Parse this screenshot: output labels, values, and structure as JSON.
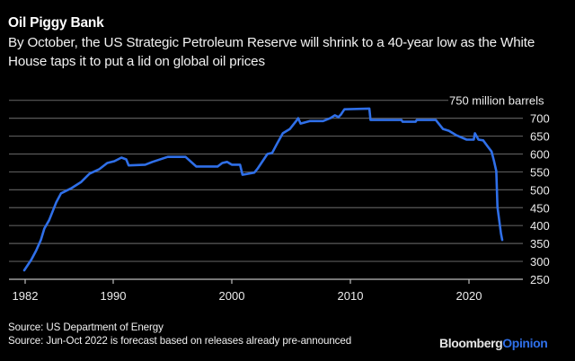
{
  "header": {
    "title": "Oil Piggy Bank",
    "subtitle": "By October, the US Strategic Petroleum Reserve will shrink to a 40-year low as the White House taps it to put a lid on global oil prices"
  },
  "footer": {
    "source_1": "Source: US Department of Energy",
    "source_2": "Source: Jun-Oct 2022 is forecast based on releases already pre-announced",
    "brand_main": "Bloomberg",
    "brand_accent": "Opinion"
  },
  "colors": {
    "background": "#000000",
    "line": "#2f6fe8",
    "gridline": "#5a5a5a",
    "axis": "#bdbdbd",
    "brand_accent": "#2f6fe8"
  },
  "chart_data": {
    "type": "line",
    "title": "Oil Piggy Bank",
    "subtitle": "By October, the US Strategic Petroleum Reserve will shrink to a 40-year low as the White House taps it to put a lid on global oil prices",
    "xlabel": "",
    "ylabel": "million barrels",
    "ylim": [
      250,
      750
    ],
    "xlim": [
      1982,
      2023
    ],
    "y_ticks": [
      250,
      300,
      350,
      400,
      450,
      500,
      550,
      600,
      650,
      700,
      750
    ],
    "y_tick_labels": [
      "250",
      "300",
      "350",
      "400",
      "450",
      "500",
      "550",
      "600",
      "650",
      "700",
      "750 million barrels"
    ],
    "x_ticks": [
      1982,
      1990,
      2000,
      2010,
      2020
    ],
    "x_tick_labels": [
      "1982",
      "1990",
      "2000",
      "2010",
      "2020"
    ],
    "grid": true,
    "y_axis_side": "right",
    "legend": "none",
    "series": [
      {
        "name": "US Strategic Petroleum Reserve (million barrels)",
        "x": [
          1982.5,
          1983.1,
          1983.5,
          1983.9,
          1984.2,
          1984.6,
          1985.2,
          1985.6,
          1986.5,
          1987.3,
          1988.0,
          1988.8,
          1989.5,
          1990.1,
          1990.7,
          1991.1,
          1991.3,
          1992.7,
          1993.3,
          1994.6,
          1996.1,
          1997.0,
          1998.8,
          1999.2,
          1999.6,
          2000.0,
          2000.7,
          2000.9,
          2001.9,
          2002.2,
          2003.0,
          2003.4,
          2003.8,
          2004.3,
          2004.9,
          2005.5,
          2005.6,
          2005.8,
          2006.6,
          2007.7,
          2008.3,
          2008.7,
          2009.0,
          2009.2,
          2009.5,
          2011.6,
          2011.7,
          2014.3,
          2014.4,
          2015.5,
          2015.6,
          2017.2,
          2017.8,
          2018.3,
          2018.9,
          2019.8,
          2020.4,
          2020.5,
          2020.8,
          2021.2,
          2021.6,
          2021.9,
          2022.1,
          2022.3,
          2022.4,
          2022.7,
          2022.8
        ],
        "values": [
          275,
          305,
          330,
          360,
          392,
          415,
          465,
          490,
          505,
          522,
          545,
          557,
          575,
          580,
          590,
          585,
          568,
          570,
          578,
          592,
          592,
          565,
          565,
          575,
          578,
          570,
          570,
          542,
          548,
          560,
          600,
          603,
          628,
          658,
          670,
          695,
          700,
          685,
          692,
          692,
          700,
          708,
          703,
          710,
          725,
          727,
          695,
          695,
          690,
          690,
          695,
          695,
          670,
          665,
          653,
          640,
          640,
          658,
          640,
          638,
          620,
          607,
          582,
          552,
          452,
          378,
          360
        ]
      }
    ],
    "annotations": [
      "Jun-Oct 2022 is forecast based on releases already pre-announced"
    ]
  }
}
